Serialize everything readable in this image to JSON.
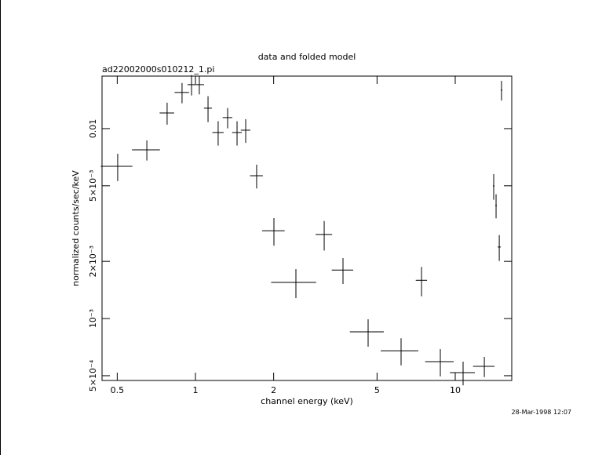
{
  "chart_data": {
    "type": "errorbar",
    "title": "data and folded model",
    "subtitle": "ad22002000s010212_1.pi",
    "xlabel": "channel energy (keV)",
    "ylabel": "normalized counts/sec/keV",
    "timestamp": "28-Mar-1998 12:07",
    "xscale": "log",
    "yscale": "log",
    "color": "#000000",
    "xlim": [
      0.437,
      16.5
    ],
    "ylim": [
      0.000472,
      0.0189
    ],
    "xticks": [
      0.5,
      1,
      2,
      5,
      10
    ],
    "yticks": [
      {
        "value": 0.0005,
        "label": "5×10⁻⁴"
      },
      {
        "value": 0.001,
        "label": "10⁻³"
      },
      {
        "value": 0.002,
        "label": "2×10⁻³"
      },
      {
        "value": 0.005,
        "label": "5×10⁻³"
      },
      0.01
    ],
    "x": [
      0.502,
      0.65,
      0.778,
      0.888,
      0.966,
      1.035,
      1.118,
      1.223,
      1.33,
      1.446,
      1.561,
      1.72,
      2.005,
      2.436,
      3.13,
      3.698,
      4.62,
      6.187,
      7.417,
      8.762,
      10.72,
      12.94,
      14.06,
      14.36,
      14.77,
      15.07
    ],
    "xerr": [
      0.07,
      0.08,
      0.05,
      0.057,
      0.034,
      0.044,
      0.04,
      0.061,
      0.057,
      0.062,
      0.066,
      0.098,
      0.2,
      0.48,
      0.23,
      0.35,
      0.69,
      1.02,
      0.37,
      1.1,
      1.18,
      1.23,
      0.1,
      0.1,
      0.2,
      0.1
    ],
    "values": [
      0.00633,
      0.00773,
      0.01209,
      0.01549,
      0.01704,
      0.01704,
      0.01281,
      0.00954,
      0.01143,
      0.00954,
      0.00981,
      0.00565,
      0.0029,
      0.00155,
      0.00277,
      0.0018,
      0.000851,
      0.000677,
      0.00159,
      0.000593,
      0.000519,
      0.00056,
      0.00499,
      0.00394,
      0.00238,
      0.01594
    ],
    "yerr": [
      0.00104,
      0.00094,
      0.0016,
      0.0019,
      0.0021,
      0.0019,
      0.002,
      0.0014,
      0.0014,
      0.0014,
      0.0014,
      0.00081,
      0.00048,
      0.00027,
      0.00049,
      0.00028,
      0.00014,
      0.00011,
      0.00028,
      9.7e-05,
      7.4e-05,
      6.8e-05,
      0.00077,
      0.00057,
      0.00037,
      0.0019
    ]
  }
}
